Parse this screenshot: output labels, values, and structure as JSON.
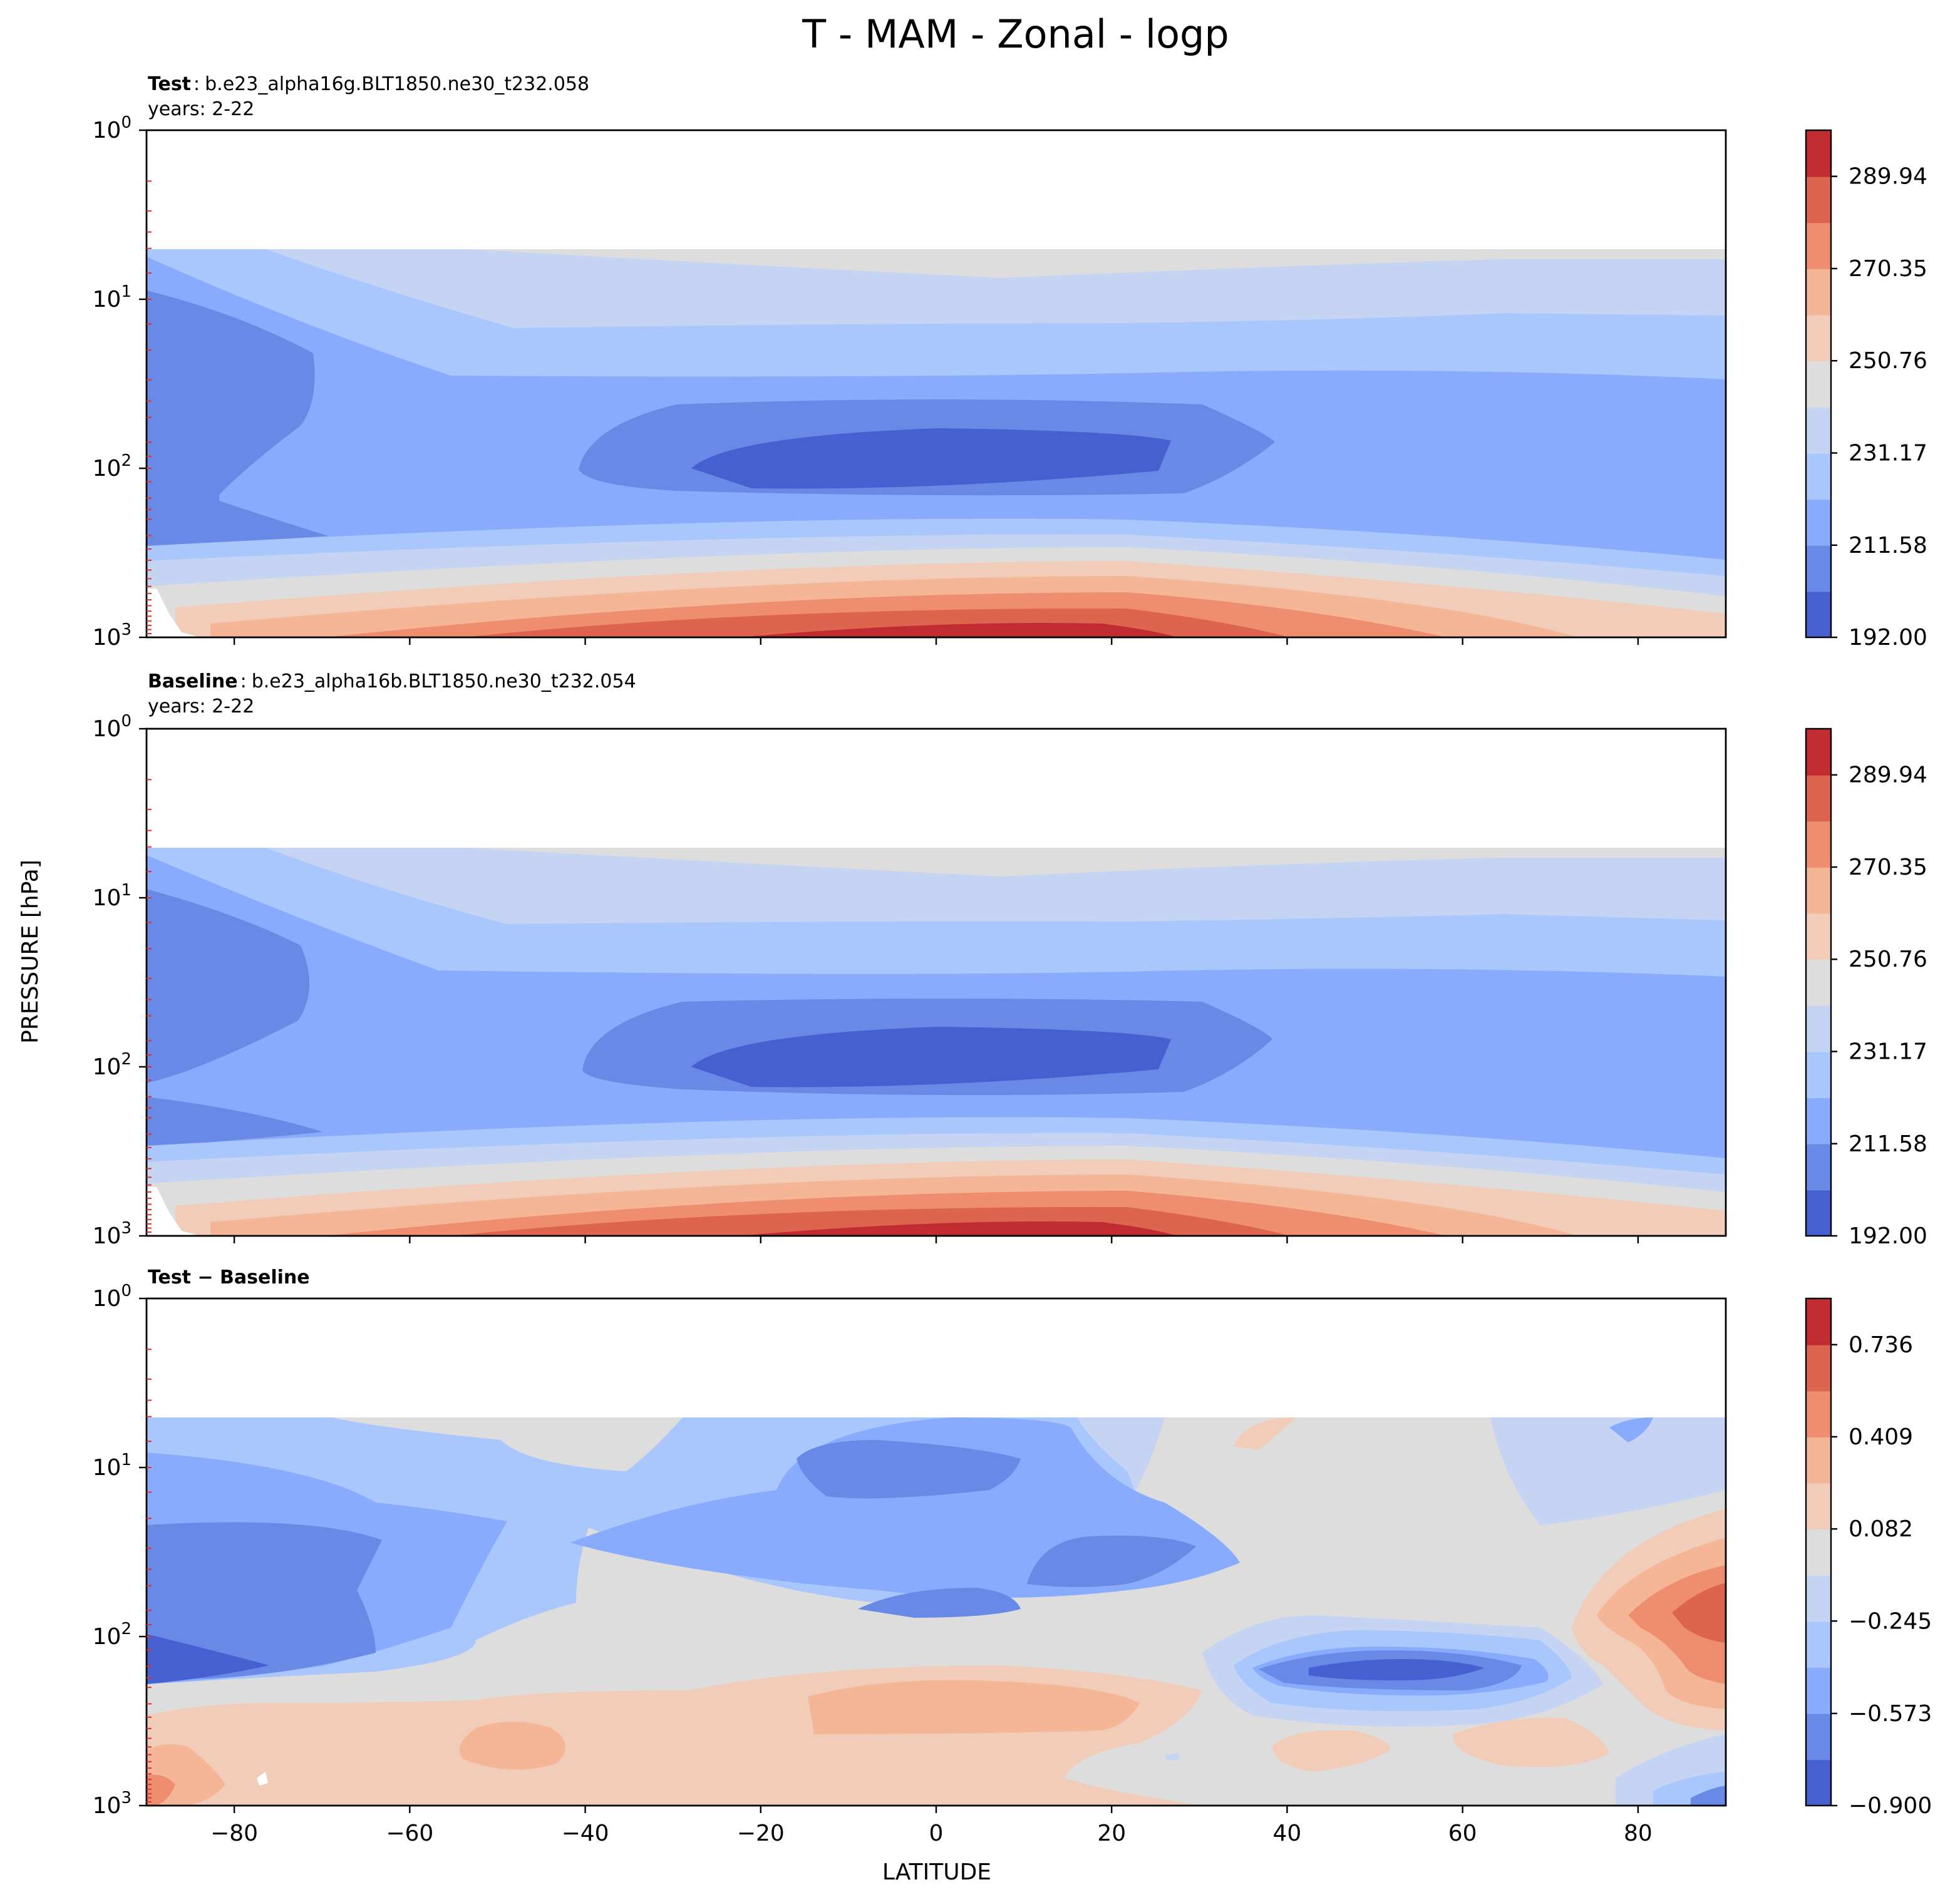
{
  "figure": {
    "title": "T - MAM - Zonal - logp",
    "ylabel": "PRESSURE [hPa]",
    "xlabel": "LATITUDE"
  },
  "panels": [
    {
      "id": "test",
      "heading_bold": "Test",
      "heading_sep": ":",
      "heading_rest": "b.e23_alpha16g.BLT1850.ne30_t232.058",
      "subheading": "years: 2-22"
    },
    {
      "id": "baseline",
      "heading_bold": "Baseline",
      "heading_sep": ":",
      "heading_rest": "b.e23_alpha16b.BLT1850.ne30_t232.054",
      "subheading": "years: 2-22"
    },
    {
      "id": "diff",
      "heading_bold": "Test − Baseline",
      "heading_sep": "",
      "heading_rest": "",
      "subheading": ""
    }
  ],
  "colorbars": [
    {
      "ticks": [
        "192.00",
        "211.58",
        "231.17",
        "250.76",
        "270.35",
        "289.94"
      ],
      "tick_values": [
        192.0,
        211.58,
        231.17,
        250.76,
        270.35,
        289.94
      ],
      "min": 192.0,
      "max": 299.74
    },
    {
      "ticks": [
        "192.00",
        "211.58",
        "231.17",
        "250.76",
        "270.35",
        "289.94"
      ],
      "tick_values": [
        192.0,
        211.58,
        231.17,
        250.76,
        270.35,
        289.94
      ],
      "min": 192.0,
      "max": 299.74
    },
    {
      "ticks": [
        "−0.900",
        "−0.573",
        "−0.245",
        "0.082",
        "0.409",
        "0.736"
      ],
      "tick_values": [
        -0.9,
        -0.573,
        -0.245,
        0.082,
        0.409,
        0.736
      ],
      "min": -0.9,
      "max": 0.9
    }
  ],
  "chart_data": {
    "type": "heatmap",
    "plot_kind": "filled contour, zonal mean temperature vs latitude and log pressure",
    "title": "T - MAM - Zonal - logp",
    "xlabel": "LATITUDE",
    "ylabel": "PRESSURE [hPa]",
    "xlim": [
      -90,
      90
    ],
    "ylim_hPa": [
      1000,
      1
    ],
    "yscale": "log",
    "xticks": [
      -80,
      -60,
      -40,
      -20,
      0,
      20,
      40,
      60,
      80
    ],
    "xtick_labels": [
      "−80",
      "−60",
      "−40",
      "−20",
      "0",
      "20",
      "40",
      "60",
      "80"
    ],
    "yticks_hPa": [
      1,
      10,
      100,
      1000
    ],
    "ytick_base": "10",
    "ytick_exponents": [
      "0",
      "1",
      "2",
      "3"
    ],
    "data_top_hPa": 5,
    "model_level_marks_hPa": [
      2,
      3,
      4,
      5,
      7,
      10,
      14,
      20,
      30,
      40,
      50,
      70,
      85,
      100,
      120,
      150,
      175,
      200,
      250,
      300,
      350,
      400,
      450,
      500,
      550,
      600,
      650,
      700,
      750,
      800,
      850,
      900,
      950
    ],
    "colormap": "coolwarm",
    "panels": [
      {
        "name": "Test",
        "levels_min": 192.0,
        "levels_max": 299.74,
        "n_levels": 11,
        "key_features": [
          {
            "feature": "tropical tropopause cold core",
            "lat_range": [
              -28,
              27
            ],
            "pressure_hPa": [
              70,
              130
            ],
            "value_K": 198
          },
          {
            "feature": "antarctic cold region",
            "lat_range": [
              -90,
              -70
            ],
            "pressure_hPa": [
              8,
              300
            ],
            "value_K": 205
          },
          {
            "feature": "warm tropical surface",
            "lat_range": [
              -20,
              30
            ],
            "pressure_hPa": [
              850,
              1000
            ],
            "value_K": 296
          }
        ]
      },
      {
        "name": "Baseline",
        "levels_min": 192.0,
        "levels_max": 299.74,
        "n_levels": 11,
        "key_features": [
          {
            "feature": "tropical tropopause cold core",
            "lat_range": [
              -28,
              26
            ],
            "pressure_hPa": [
              70,
              130
            ],
            "value_K": 198
          },
          {
            "feature": "antarctic cold region",
            "lat_range": [
              -90,
              -72
            ],
            "pressure_hPa": [
              8,
              250
            ],
            "value_K": 205
          },
          {
            "feature": "warm tropical surface",
            "lat_range": [
              -20,
              30
            ],
            "pressure_hPa": [
              850,
              1000
            ],
            "value_K": 296
          }
        ]
      },
      {
        "name": "Test − Baseline",
        "levels_min": -0.9,
        "levels_max": 0.9,
        "n_levels": 11,
        "key_features": [
          {
            "feature": "strong negative near antarctic lower stratosphere",
            "lat_range": [
              -90,
              -75
            ],
            "pressure_hPa": [
              90,
              160
            ],
            "value_K": -0.85
          },
          {
            "feature": "negative anomaly mid-latitude NH",
            "lat_range": [
              40,
              65
            ],
            "pressure_hPa": [
              120,
              200
            ],
            "value_K": -0.8
          },
          {
            "feature": "positive anomaly arctic upper troposphere",
            "lat_range": [
              75,
              90
            ],
            "pressure_hPa": [
              40,
              300
            ],
            "value_K": 0.6
          },
          {
            "feature": "positive anomaly tropical troposphere",
            "lat_range": [
              -15,
              25
            ],
            "pressure_hPa": [
              200,
              400
            ],
            "value_K": 0.3
          }
        ]
      }
    ]
  }
}
